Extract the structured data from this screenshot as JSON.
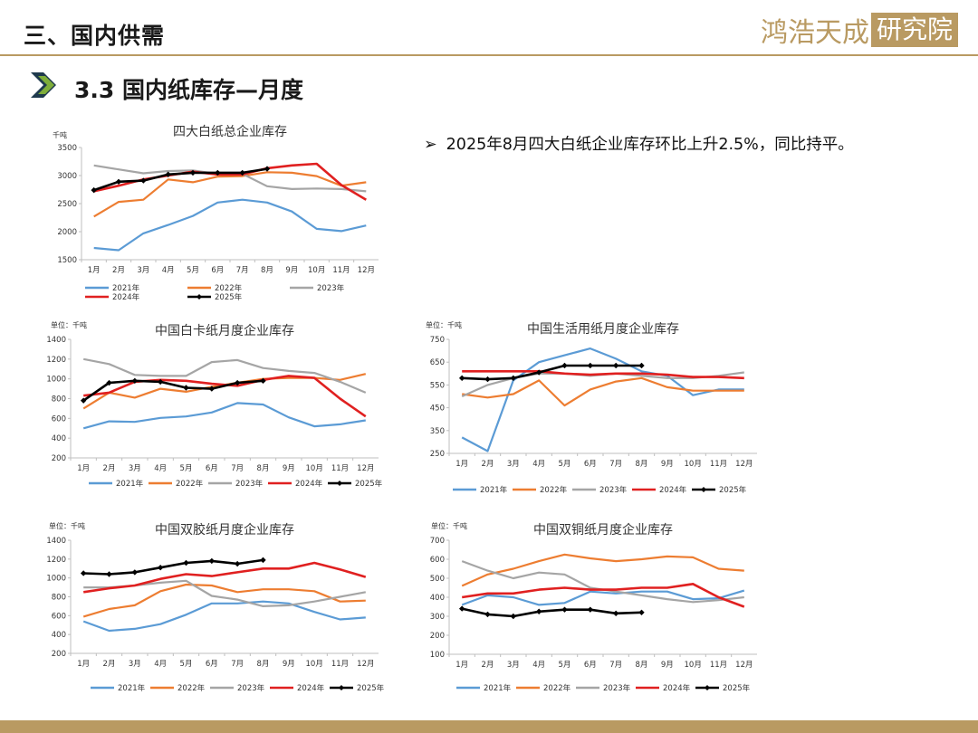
{
  "header": {
    "title": "三、国内供需"
  },
  "logo": {
    "text": "鸿浩天成",
    "box_text": "研究院"
  },
  "section": {
    "title": "3.3 国内纸库存—月度"
  },
  "bullet": {
    "mark": "➢",
    "text": "2025年8月四大白纸企业库存环比上升2.5%，同比持平。"
  },
  "colors": {
    "accent": "#b99a62",
    "arrow_dark": "#1f3a4d",
    "arrow_light": "#7fae3a",
    "s2021": "#5b9bd5",
    "s2022": "#ed7d31",
    "s2023": "#a5a5a5",
    "s2024": "#e02020",
    "s2025": "#000000"
  },
  "chart_data": [
    {
      "type": "line",
      "title": "四大白纸总企业库存",
      "unit": "千吨",
      "categories": [
        "1月",
        "2月",
        "3月",
        "4月",
        "5月",
        "6月",
        "7月",
        "8月",
        "9月",
        "10月",
        "11月",
        "12月"
      ],
      "ylim": [
        1500,
        3500
      ],
      "yticks": [
        1500,
        2000,
        2500,
        3000,
        3500
      ],
      "series": [
        {
          "name": "2021年",
          "values": [
            1710,
            1670,
            1970,
            2120,
            2280,
            2520,
            2570,
            2520,
            2360,
            2050,
            2010,
            2110
          ]
        },
        {
          "name": "2022年",
          "values": [
            2270,
            2530,
            2570,
            2930,
            2880,
            2980,
            2990,
            3060,
            3050,
            2990,
            2820,
            2880
          ]
        },
        {
          "name": "2023年",
          "values": [
            3180,
            3110,
            3040,
            3080,
            3090,
            3030,
            3030,
            2810,
            2760,
            2770,
            2760,
            2720
          ]
        },
        {
          "name": "2024年",
          "values": [
            2720,
            2820,
            2930,
            3000,
            3070,
            3020,
            3020,
            3130,
            3180,
            3210,
            2830,
            2570
          ]
        },
        {
          "name": "2025年",
          "values": [
            2740,
            2890,
            2910,
            3020,
            3050,
            3050,
            3050,
            3120,
            null,
            null,
            null,
            null
          ]
        }
      ]
    },
    {
      "type": "line",
      "title": "中国白卡纸月度企业库存",
      "unit": "单位：千吨",
      "categories": [
        "1月",
        "2月",
        "3月",
        "4月",
        "5月",
        "6月",
        "7月",
        "8月",
        "9月",
        "10月",
        "11月",
        "12月"
      ],
      "ylim": [
        200,
        1400
      ],
      "yticks": [
        200,
        400,
        600,
        800,
        1000,
        1200,
        1400
      ],
      "series": [
        {
          "name": "2021年",
          "values": [
            500,
            570,
            565,
            605,
            620,
            660,
            755,
            740,
            610,
            520,
            540,
            580
          ]
        },
        {
          "name": "2022年",
          "values": [
            700,
            860,
            810,
            900,
            870,
            920,
            960,
            1000,
            1010,
            1010,
            990,
            1050
          ]
        },
        {
          "name": "2023年",
          "values": [
            1200,
            1150,
            1040,
            1030,
            1030,
            1170,
            1190,
            1110,
            1080,
            1060,
            970,
            860
          ]
        },
        {
          "name": "2024年",
          "values": [
            830,
            860,
            970,
            990,
            980,
            950,
            930,
            990,
            1030,
            1010,
            800,
            620
          ]
        },
        {
          "name": "2025年",
          "values": [
            780,
            960,
            980,
            970,
            910,
            900,
            960,
            980,
            null,
            null,
            null,
            null
          ]
        }
      ]
    },
    {
      "type": "line",
      "title": "中国生活用纸月度企业库存",
      "unit": "单位：千吨",
      "categories": [
        "1月",
        "2月",
        "3月",
        "4月",
        "5月",
        "6月",
        "7月",
        "8月",
        "9月",
        "10月",
        "11月",
        "12月"
      ],
      "ylim": [
        250,
        750
      ],
      "yticks": [
        250,
        350,
        450,
        550,
        650,
        750
      ],
      "series": [
        {
          "name": "2021年",
          "values": [
            320,
            260,
            570,
            650,
            680,
            710,
            665,
            610,
            590,
            505,
            530,
            530
          ]
        },
        {
          "name": "2022年",
          "values": [
            510,
            495,
            510,
            570,
            460,
            530,
            565,
            580,
            540,
            525,
            525,
            525
          ]
        },
        {
          "name": "2023年",
          "values": [
            500,
            550,
            580,
            600,
            600,
            590,
            600,
            590,
            580,
            580,
            590,
            605
          ]
        },
        {
          "name": "2024年",
          "values": [
            610,
            610,
            610,
            610,
            600,
            595,
            600,
            600,
            595,
            585,
            585,
            580
          ]
        },
        {
          "name": "2025年",
          "values": [
            580,
            575,
            580,
            605,
            635,
            635,
            635,
            635,
            null,
            null,
            null,
            null
          ]
        }
      ]
    },
    {
      "type": "line",
      "title": "中国双胶纸月度企业库存",
      "unit": "单位：千吨",
      "categories": [
        "1月",
        "2月",
        "3月",
        "4月",
        "5月",
        "6月",
        "7月",
        "8月",
        "9月",
        "10月",
        "11月",
        "12月"
      ],
      "ylim": [
        200,
        1400
      ],
      "yticks": [
        200,
        400,
        600,
        800,
        1000,
        1200,
        1400
      ],
      "series": [
        {
          "name": "2021年",
          "values": [
            540,
            440,
            460,
            510,
            610,
            730,
            730,
            750,
            730,
            640,
            560,
            580
          ]
        },
        {
          "name": "2022年",
          "values": [
            590,
            670,
            710,
            860,
            930,
            920,
            850,
            880,
            880,
            860,
            750,
            760
          ]
        },
        {
          "name": "2023年",
          "values": [
            900,
            900,
            920,
            950,
            970,
            810,
            770,
            700,
            710,
            750,
            800,
            850
          ]
        },
        {
          "name": "2024年",
          "values": [
            850,
            890,
            920,
            990,
            1040,
            1020,
            1060,
            1100,
            1100,
            1160,
            1090,
            1010
          ]
        },
        {
          "name": "2025年",
          "values": [
            1050,
            1040,
            1060,
            1110,
            1160,
            1180,
            1150,
            1190,
            null,
            null,
            null,
            null
          ]
        }
      ]
    },
    {
      "type": "line",
      "title": "中国双铜纸月度企业库存",
      "unit": "单位：千吨",
      "categories": [
        "1月",
        "2月",
        "3月",
        "4月",
        "5月",
        "6月",
        "7月",
        "8月",
        "9月",
        "10月",
        "11月",
        "12月"
      ],
      "ylim": [
        100,
        700
      ],
      "yticks": [
        100,
        200,
        300,
        400,
        500,
        600,
        700
      ],
      "series": [
        {
          "name": "2021年",
          "values": [
            360,
            410,
            400,
            360,
            370,
            430,
            420,
            430,
            430,
            390,
            395,
            435
          ]
        },
        {
          "name": "2022年",
          "values": [
            460,
            520,
            550,
            590,
            625,
            605,
            590,
            600,
            615,
            610,
            550,
            540
          ]
        },
        {
          "name": "2023年",
          "values": [
            590,
            540,
            500,
            530,
            520,
            450,
            430,
            410,
            390,
            375,
            385,
            400
          ]
        },
        {
          "name": "2024年",
          "values": [
            400,
            420,
            420,
            440,
            450,
            440,
            440,
            450,
            450,
            470,
            400,
            350
          ]
        },
        {
          "name": "2025年",
          "values": [
            340,
            310,
            300,
            325,
            335,
            335,
            315,
            320,
            null,
            null,
            null,
            null
          ]
        }
      ]
    }
  ]
}
